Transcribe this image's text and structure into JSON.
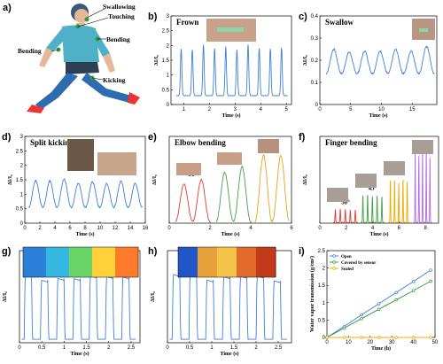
{
  "colors": {
    "blue": "#3f7fd6",
    "red": "#e53935",
    "green": "#43a047",
    "gold": "#e3a516",
    "purple": "#b36ae2",
    "orange": "#f0a800",
    "darkgreen": "#2e9c3e"
  },
  "panel_labels": [
    "a)",
    "b)",
    "c)",
    "d)",
    "e)",
    "f)",
    "g)",
    "h)",
    "i)"
  ],
  "figure_a": {
    "labels": [
      "Swallowing",
      "Touching",
      "Bending",
      "Bending",
      "Kicking"
    ]
  },
  "chart_data": [
    {
      "id": "b",
      "type": "line",
      "title": "Frown",
      "xlabel": "Time (s)",
      "ylabel": "ΔI/I₀",
      "xlim": [
        0.5,
        5.2
      ],
      "ylim": [
        0,
        3.0
      ],
      "xticks": [
        1,
        2,
        3,
        4,
        5
      ],
      "yticks": [
        0.0,
        0.5,
        1.0,
        1.5,
        2.0,
        2.5,
        3.0
      ],
      "peak_count": 10,
      "base": 0.3,
      "peak": 2.0,
      "series_color": "blue"
    },
    {
      "id": "c",
      "type": "line",
      "title": "Swallow",
      "xlabel": "Time (s)",
      "ylabel": "ΔI/I₀",
      "xlim": [
        0,
        19
      ],
      "ylim": [
        0,
        0.4
      ],
      "xticks": [
        0,
        5,
        10,
        15
      ],
      "yticks": [
        0.0,
        0.1,
        0.2,
        0.3,
        0.4
      ],
      "peak_count": 7,
      "base": 0.14,
      "peak": 0.26,
      "series_color": "blue"
    },
    {
      "id": "d",
      "type": "line",
      "title": "Split kicking",
      "xlabel": "Time (s)",
      "ylabel": "ΔI/I₀",
      "xlim": [
        0,
        16
      ],
      "ylim": [
        0,
        3.0
      ],
      "xticks": [
        0,
        2,
        4,
        6,
        8,
        10,
        12,
        14,
        16
      ],
      "yticks": [
        0.0,
        0.5,
        1.0,
        1.5,
        2.0,
        2.5,
        3.0
      ],
      "peak_count": 8,
      "base": 0.55,
      "peak": 1.5,
      "series_color": "blue"
    },
    {
      "id": "e",
      "type": "line",
      "title": "Elbow bending",
      "xlabel": "Time (s)",
      "ylabel": "ΔI/I₀",
      "xlim": [
        0,
        6
      ],
      "ylim": [
        0,
        14
      ],
      "xticks": [
        0,
        2,
        4,
        6
      ],
      "yticks": [],
      "series": [
        {
          "name": "30°",
          "color": "red",
          "start": 0.3,
          "end": 2.0,
          "peaks": 2,
          "peak": 7
        },
        {
          "name": "45°",
          "color": "green",
          "start": 2.3,
          "end": 4.0,
          "peaks": 2,
          "peak": 9
        },
        {
          "name": "90°",
          "color": "gold",
          "start": 4.2,
          "end": 5.9,
          "peaks": 2,
          "peak": 12
        }
      ]
    },
    {
      "id": "f",
      "type": "line",
      "title": "Finger bending",
      "xlabel": "Time (s)",
      "ylabel": "ΔI/I₀",
      "xlim": [
        0,
        9
      ],
      "ylim": [
        0,
        6
      ],
      "xticks": [
        0,
        2,
        4,
        6,
        8
      ],
      "yticks": [],
      "series": [
        {
          "name": "30°",
          "color": "red",
          "start": 1.0,
          "end": 2.9,
          "peaks": 5,
          "peak": 1.0
        },
        {
          "name": "45°",
          "color": "green",
          "start": 3.1,
          "end": 4.9,
          "peaks": 5,
          "peak": 2.0
        },
        {
          "name": "60°",
          "color": "orange",
          "start": 5.2,
          "end": 6.8,
          "peaks": 5,
          "peak": 3.1
        },
        {
          "name": "90°",
          "color": "purple",
          "start": 7.1,
          "end": 8.5,
          "peaks": 5,
          "peak": 5.0
        }
      ]
    },
    {
      "id": "g",
      "type": "line",
      "title": "",
      "xlabel": "Time (s)",
      "ylabel": "ΔI/I₀",
      "xlim": [
        0,
        2.7
      ],
      "ylim": [
        0,
        1.35
      ],
      "xticks": [
        0.0,
        0.5,
        1.0,
        1.5,
        2.0,
        2.5
      ],
      "yticks": [],
      "peak_count": 7,
      "base": 0.05,
      "peak": 1.0,
      "series_color": "blue"
    },
    {
      "id": "h",
      "type": "line",
      "title": "",
      "xlabel": "Time (s)",
      "ylabel": "ΔI/I₀",
      "xlim": [
        0,
        2.8
      ],
      "ylim": [
        0,
        1.35
      ],
      "xticks": [
        0.0,
        0.5,
        1.0,
        1.5,
        2.0,
        2.5
      ],
      "yticks": [],
      "peak_count": 7,
      "base": 0.05,
      "peak": 1.0,
      "series_color": "blue"
    },
    {
      "id": "i",
      "type": "line",
      "title": "",
      "xlabel": "Time (h)",
      "ylabel": "Water vapor transmission (g/cm²)",
      "xlim": [
        0,
        50
      ],
      "ylim": [
        0,
        2.5
      ],
      "xticks": [
        0,
        10,
        20,
        30,
        40,
        50
      ],
      "yticks": [
        0.0,
        0.5,
        1.0,
        1.5,
        2.0,
        2.5
      ],
      "x": [
        0,
        8,
        16,
        24,
        32,
        40,
        48
      ],
      "series": [
        {
          "name": "Open",
          "color": "blue",
          "values": [
            0,
            0.32,
            0.65,
            0.97,
            1.29,
            1.61,
            1.94
          ]
        },
        {
          "name": "Covered by sensor",
          "color": "darkgreen",
          "values": [
            0,
            0.27,
            0.54,
            0.81,
            1.08,
            1.35,
            1.62
          ]
        },
        {
          "name": "Sealed",
          "color": "orange",
          "values": [
            0,
            0,
            0,
            0,
            0,
            0,
            0
          ]
        }
      ],
      "legend_position": "top-left"
    }
  ]
}
